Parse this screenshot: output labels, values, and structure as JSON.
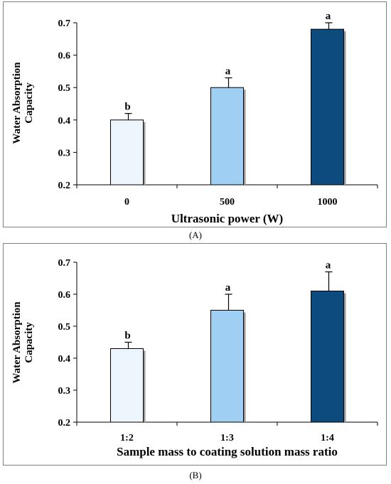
{
  "panels": [
    {
      "label": "(A)"
    },
    {
      "label": "(B)"
    }
  ],
  "chart_data": [
    {
      "type": "bar",
      "categories": [
        "0",
        "500",
        "1000"
      ],
      "values": [
        0.4,
        0.5,
        0.68
      ],
      "errors": [
        0.02,
        0.03,
        0.02
      ],
      "significance": [
        "b",
        "a",
        "a"
      ],
      "colors": [
        "#eef6fd",
        "#9fd0f4",
        "#0d4b7e"
      ],
      "xlabel": "Ultrasonic power (W)",
      "ylabel_lines": [
        "Water Absorption",
        "Capacity"
      ],
      "ylim": [
        0.2,
        0.7
      ],
      "yticks": [
        "0.2",
        "0.3",
        "0.4",
        "0.5",
        "0.6",
        "0.7"
      ],
      "grid": false,
      "legend": "none"
    },
    {
      "type": "bar",
      "categories": [
        "1:2",
        "1:3",
        "1:4"
      ],
      "values": [
        0.43,
        0.55,
        0.61
      ],
      "errors": [
        0.02,
        0.05,
        0.06
      ],
      "significance": [
        "b",
        "a",
        "a"
      ],
      "colors": [
        "#eef6fd",
        "#9fd0f4",
        "#0d4b7e"
      ],
      "xlabel": "Sample mass to coating solution mass ratio",
      "ylabel_lines": [
        "Water Absorption",
        "Capacity"
      ],
      "ylim": [
        0.2,
        0.7
      ],
      "yticks": [
        "0.2",
        "0.3",
        "0.4",
        "0.5",
        "0.6",
        "0.7"
      ],
      "grid": false,
      "legend": "none"
    }
  ]
}
